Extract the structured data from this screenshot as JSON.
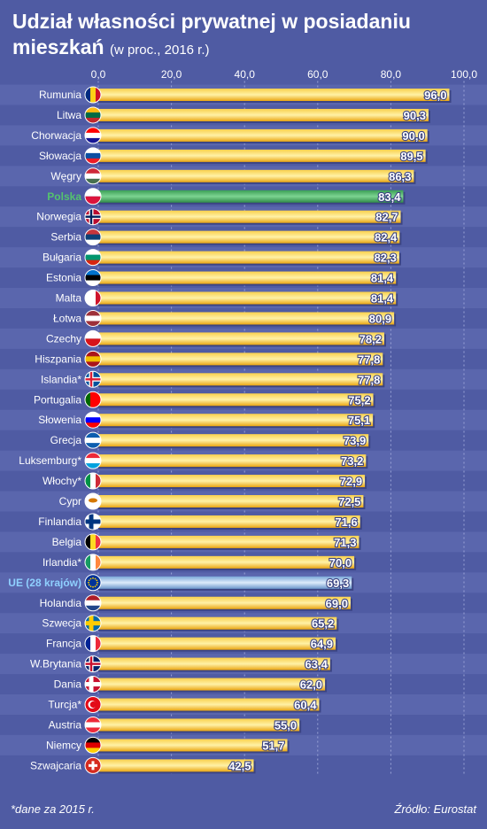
{
  "header": {
    "title": "Udział własności prywatnej w posiadaniu mieszkań",
    "subtitle": "(w proc., 2016 r.)"
  },
  "footer": {
    "footnote": "*dane za 2015 r.",
    "source": "Źródło: Eurostat"
  },
  "colors": {
    "background": "#4f5ba3",
    "bar": "#f5b820",
    "highlight_poland": "#3fae5c",
    "highlight_eu": "#9fc2e6",
    "label_poland": "#54c36e",
    "label_eu": "#8fd0ff"
  },
  "chart_data": {
    "type": "bar",
    "orientation": "horizontal",
    "xlim": [
      0,
      100
    ],
    "xticks": [
      "0,0",
      "20,0",
      "40,0",
      "60,0",
      "80,0",
      "100,0"
    ],
    "grid": true,
    "categories": [
      "Rumunia",
      "Litwa",
      "Chorwacja",
      "Słowacja",
      "Węgry",
      "Polska",
      "Norwegia",
      "Serbia",
      "Bułgaria",
      "Estonia",
      "Malta",
      "Łotwa",
      "Czechy",
      "Hiszpania",
      "Islandia*",
      "Portugalia",
      "Słowenia",
      "Grecja",
      "Luksemburg*",
      "Włochy*",
      "Cypr",
      "Finlandia",
      "Belgia",
      "Irlandia*",
      "UE (28 krajów)",
      "Holandia",
      "Szwecja",
      "Francja",
      "W.Brytania",
      "Dania",
      "Turcja*",
      "Austria",
      "Niemcy",
      "Szwajcaria"
    ],
    "values": [
      96.0,
      90.3,
      90.0,
      89.5,
      86.3,
      83.4,
      82.7,
      82.4,
      82.3,
      81.4,
      81.4,
      80.9,
      78.2,
      77.8,
      77.8,
      75.2,
      75.1,
      73.9,
      73.2,
      72.9,
      72.5,
      71.6,
      71.3,
      70.0,
      69.3,
      69.0,
      65.2,
      64.9,
      63.4,
      62.0,
      60.4,
      55.0,
      51.7,
      42.5
    ],
    "value_labels": [
      "96,0",
      "90,3",
      "90,0",
      "89,5",
      "86,3",
      "83,4",
      "82,7",
      "82,4",
      "82,3",
      "81,4",
      "81,4",
      "80,9",
      "78,2",
      "77,8",
      "77,8",
      "75,2",
      "75,1",
      "73,9",
      "73,2",
      "72,9",
      "72,5",
      "71,6",
      "71,3",
      "70,0",
      "69,3",
      "69,0",
      "65,2",
      "64,9",
      "63,4",
      "62,0",
      "60,4",
      "55,0",
      "51,7",
      "42,5"
    ],
    "highlighted": {
      "Polska": "poland",
      "UE (28 krajów)": "eu"
    }
  },
  "flags": [
    "flag-ro-icon",
    "flag-lt-icon",
    "flag-hr-icon",
    "flag-sk-icon",
    "flag-hu-icon",
    "flag-pl-icon",
    "flag-no-icon",
    "flag-rs-icon",
    "flag-bg-icon",
    "flag-ee-icon",
    "flag-mt-icon",
    "flag-lv-icon",
    "flag-cz-icon",
    "flag-es-icon",
    "flag-is-icon",
    "flag-pt-icon",
    "flag-si-icon",
    "flag-gr-icon",
    "flag-lu-icon",
    "flag-it-icon",
    "flag-cy-icon",
    "flag-fi-icon",
    "flag-be-icon",
    "flag-ie-icon",
    "flag-eu-icon",
    "flag-nl-icon",
    "flag-se-icon",
    "flag-fr-icon",
    "flag-gb-icon",
    "flag-dk-icon",
    "flag-tr-icon",
    "flag-at-icon",
    "flag-de-icon",
    "flag-ch-icon"
  ]
}
